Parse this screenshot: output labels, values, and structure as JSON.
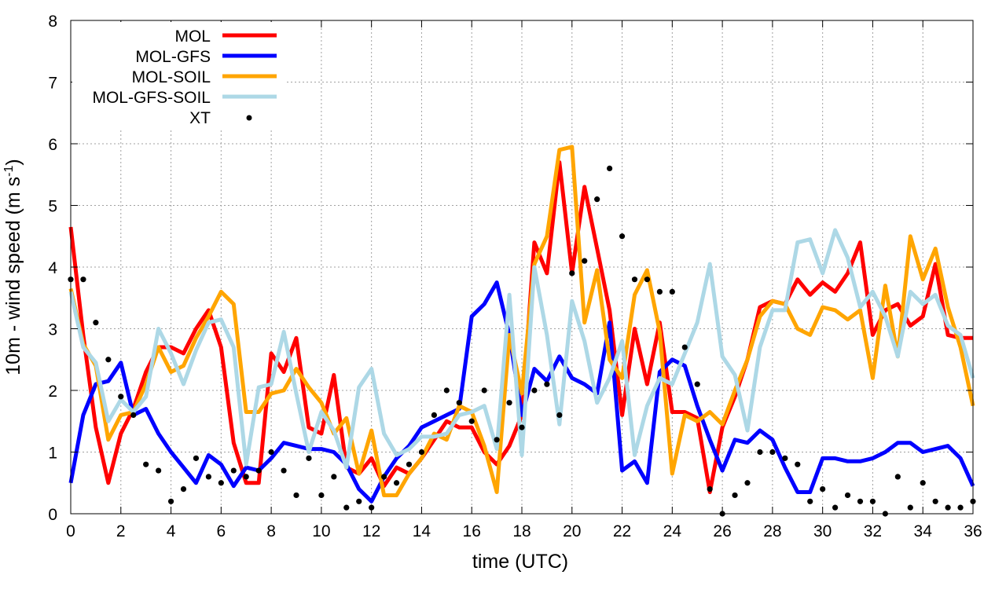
{
  "chart_data": {
    "type": "line",
    "title": "",
    "xlabel": "time (UTC)",
    "ylabel": "10m - wind speed  (m s",
    "ylabel_sup": "-1",
    "ylabel_close": ")",
    "xlim": [
      0,
      36
    ],
    "ylim": [
      0,
      8
    ],
    "xticks": [
      0,
      2,
      4,
      6,
      8,
      10,
      12,
      14,
      16,
      18,
      20,
      22,
      24,
      26,
      28,
      30,
      32,
      34,
      36
    ],
    "yticks": [
      0,
      1,
      2,
      3,
      4,
      5,
      6,
      7,
      8
    ],
    "grid": true,
    "legend_position": "top-left",
    "x": [
      0,
      0.5,
      1,
      1.5,
      2,
      2.5,
      3,
      3.5,
      4,
      4.5,
      5,
      5.5,
      6,
      6.5,
      7,
      7.5,
      8,
      8.5,
      9,
      9.5,
      10,
      10.5,
      11,
      11.5,
      12,
      12.5,
      13,
      13.5,
      14,
      14.5,
      15,
      15.5,
      16,
      16.5,
      17,
      17.5,
      18,
      18.5,
      19,
      19.5,
      20,
      20.5,
      21,
      21.5,
      22,
      22.5,
      23,
      23.5,
      24,
      24.5,
      25,
      25.5,
      26,
      26.5,
      27,
      27.5,
      28,
      28.5,
      29,
      29.5,
      30,
      30.5,
      31,
      31.5,
      32,
      32.5,
      33,
      33.5,
      34,
      34.5,
      35,
      35.5,
      36
    ],
    "series": [
      {
        "name": "MOL",
        "style": "line",
        "color": "#ff0000",
        "values": [
          4.65,
          2.9,
          1.4,
          0.5,
          1.3,
          1.7,
          2.3,
          2.7,
          2.7,
          2.6,
          3.0,
          3.3,
          2.7,
          1.15,
          0.5,
          0.5,
          2.6,
          2.3,
          2.85,
          1.4,
          1.3,
          2.25,
          0.75,
          0.65,
          0.9,
          0.45,
          0.75,
          0.65,
          0.9,
          1.2,
          1.5,
          1.4,
          1.4,
          1.0,
          0.8,
          1.1,
          1.6,
          4.4,
          3.9,
          5.7,
          3.9,
          5.3,
          4.3,
          3.3,
          1.6,
          3.0,
          2.1,
          3.1,
          1.65,
          1.65,
          1.55,
          0.35,
          1.4,
          1.9,
          2.5,
          3.35,
          3.45,
          3.4,
          3.8,
          3.55,
          3.75,
          3.6,
          3.9,
          4.4,
          2.9,
          3.3,
          3.4,
          3.05,
          3.2,
          4.05,
          2.9,
          2.85,
          2.85
        ]
      },
      {
        "name": "MOL-GFS",
        "style": "line",
        "color": "#0000ff",
        "values": [
          0.5,
          1.6,
          2.1,
          2.15,
          2.45,
          1.6,
          1.7,
          1.3,
          1.0,
          0.75,
          0.5,
          0.95,
          0.8,
          0.45,
          0.75,
          0.7,
          0.9,
          1.15,
          1.1,
          1.05,
          1.05,
          1.0,
          0.8,
          0.4,
          0.2,
          0.6,
          0.9,
          1.1,
          1.4,
          1.5,
          1.6,
          1.7,
          3.2,
          3.4,
          3.75,
          2.9,
          1.6,
          2.35,
          2.15,
          2.55,
          2.2,
          2.1,
          1.95,
          3.1,
          0.7,
          0.85,
          0.5,
          2.3,
          2.5,
          2.4,
          1.75,
          1.2,
          0.7,
          1.2,
          1.15,
          1.35,
          1.2,
          0.75,
          0.35,
          0.35,
          0.9,
          0.9,
          0.85,
          0.85,
          0.9,
          1.0,
          1.15,
          1.15,
          1.0,
          1.05,
          1.1,
          0.9,
          0.45
        ]
      },
      {
        "name": "MOL-SOIL",
        "style": "line",
        "color": "#ffa500",
        "values": [
          3.65,
          2.75,
          2.4,
          1.2,
          1.6,
          1.65,
          2.1,
          2.7,
          2.3,
          2.4,
          2.85,
          3.2,
          3.6,
          3.4,
          1.65,
          1.65,
          1.95,
          2.0,
          2.35,
          2.05,
          1.8,
          1.3,
          1.55,
          0.65,
          1.35,
          0.3,
          0.3,
          0.65,
          0.9,
          1.3,
          1.2,
          1.75,
          1.65,
          1.1,
          0.35,
          2.9,
          1.95,
          4.05,
          4.5,
          5.9,
          5.95,
          3.1,
          3.95,
          2.5,
          2.2,
          3.55,
          3.95,
          2.95,
          0.65,
          1.6,
          1.5,
          1.65,
          1.45,
          2.0,
          2.5,
          3.2,
          3.45,
          3.4,
          3.0,
          2.9,
          3.35,
          3.3,
          3.15,
          3.3,
          2.2,
          3.7,
          2.55,
          4.5,
          3.8,
          4.3,
          3.35,
          2.7,
          1.75
        ]
      },
      {
        "name": "MOL-GFS-SOIL",
        "style": "line",
        "color": "#add8e6",
        "values": [
          3.6,
          2.7,
          2.45,
          1.5,
          1.85,
          1.65,
          1.9,
          3.0,
          2.6,
          2.1,
          2.65,
          3.1,
          3.15,
          2.7,
          0.8,
          2.05,
          2.1,
          2.95,
          1.95,
          1.0,
          1.65,
          1.35,
          0.75,
          2.05,
          2.35,
          1.3,
          0.95,
          1.05,
          1.25,
          1.25,
          1.3,
          1.6,
          1.65,
          1.75,
          1.05,
          3.55,
          0.95,
          4.0,
          2.9,
          1.45,
          3.45,
          2.8,
          1.8,
          2.2,
          2.8,
          0.95,
          1.75,
          2.2,
          2.1,
          2.6,
          3.1,
          4.05,
          2.55,
          2.25,
          1.35,
          2.7,
          3.3,
          3.3,
          4.4,
          4.45,
          3.9,
          4.6,
          4.15,
          3.35,
          3.6,
          3.2,
          2.55,
          3.6,
          3.4,
          3.55,
          3.05,
          2.9,
          2.2
        ]
      },
      {
        "name": "XT",
        "style": "points",
        "color": "#000000",
        "x": [
          0,
          0.5,
          1,
          1.5,
          2,
          2.5,
          3,
          3.5,
          4,
          4.5,
          5,
          5.5,
          6,
          6.5,
          7,
          7.5,
          8,
          8.5,
          9,
          9.5,
          10,
          10.5,
          11,
          11.5,
          12,
          12.5,
          13,
          13.5,
          14,
          14.5,
          15,
          15.5,
          16,
          16.5,
          17,
          17.5,
          18,
          18.5,
          19,
          19.5,
          20,
          20.5,
          21,
          21.5,
          22,
          22.5,
          23,
          23.5,
          24,
          24.5,
          25,
          25.5,
          26,
          26.5,
          27,
          27.5,
          28,
          28.5,
          29,
          29.5,
          30,
          30.5,
          31,
          31.5,
          32,
          32.5,
          33,
          33.5,
          34,
          34.5,
          35,
          35.5,
          36
        ],
        "values": [
          3.8,
          3.8,
          3.1,
          2.5,
          1.9,
          1.6,
          0.8,
          0.7,
          0.2,
          0.4,
          0.9,
          0.6,
          0.5,
          0.7,
          0.6,
          0.7,
          1.0,
          0.7,
          0.3,
          0.9,
          0.3,
          0.6,
          0.1,
          0.2,
          0.1,
          0.6,
          0.5,
          0.8,
          1.0,
          1.6,
          2.0,
          1.8,
          1.5,
          2.0,
          1.2,
          1.8,
          1.4,
          2.0,
          2.1,
          1.6,
          3.9,
          4.1,
          5.1,
          5.6,
          4.5,
          3.8,
          3.8,
          3.6,
          3.6,
          2.7,
          2.1,
          0.4,
          0.0,
          0.3,
          0.5,
          1.0,
          1.0,
          0.9,
          0.8,
          0.2,
          0.4,
          0.1,
          0.3,
          0.2,
          0.2,
          0.0,
          0.6,
          0.1,
          0.5,
          0.2,
          0.1,
          0.1,
          0.2
        ]
      }
    ]
  }
}
